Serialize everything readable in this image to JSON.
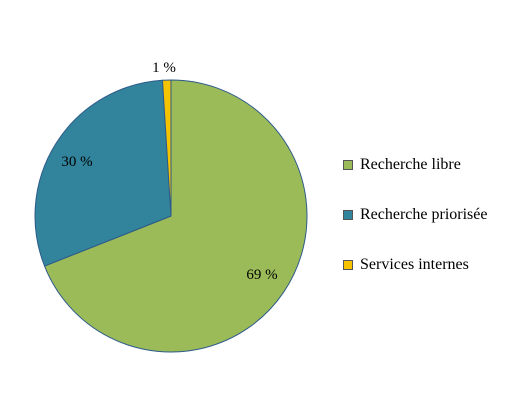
{
  "chart_data": {
    "type": "pie",
    "slices": [
      {
        "name": "Recherche libre",
        "value": 69,
        "label": "69 %",
        "color": "#9bbb59"
      },
      {
        "name": "Recherche priorisée",
        "value": 30,
        "label": "30 %",
        "color": "#31849b"
      },
      {
        "name": "Services internes",
        "value": 1,
        "label": "1 %",
        "color": "#f5c300"
      }
    ],
    "start_angle_deg": 0,
    "direction": "clockwise",
    "slice_border_color": "#2e5b8a",
    "legend_position": "right"
  }
}
